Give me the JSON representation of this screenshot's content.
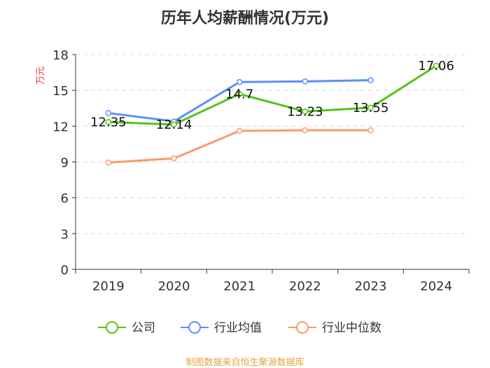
{
  "chart_data": {
    "type": "line",
    "title": "历年人均薪酬情况(万元)",
    "ylabel": "万元",
    "xlabel": "",
    "categories": [
      "2019",
      "2020",
      "2021",
      "2022",
      "2023",
      "2024"
    ],
    "ylim": [
      0,
      18
    ],
    "yticks": [
      0,
      3,
      6,
      9,
      12,
      15,
      18
    ],
    "grid": true,
    "legend": "bottom",
    "series": [
      {
        "name": "公司",
        "color": "#52c41a",
        "values": [
          12.35,
          12.14,
          14.7,
          13.23,
          13.55,
          17.06
        ],
        "labels": [
          "12.35",
          "12.14",
          "14.7",
          "13.23",
          "13.55",
          "17.06"
        ]
      },
      {
        "name": "行业均值",
        "color": "#5b8ff9",
        "values": [
          13.1,
          12.4,
          15.7,
          15.75,
          15.85,
          null
        ],
        "labels": []
      },
      {
        "name": "行业中位数",
        "color": "#ff9966",
        "values": [
          8.95,
          9.3,
          11.6,
          11.65,
          11.65,
          null
        ],
        "labels": []
      }
    ]
  },
  "footer": {
    "source": "制图数据来自恒生聚源数据库"
  }
}
